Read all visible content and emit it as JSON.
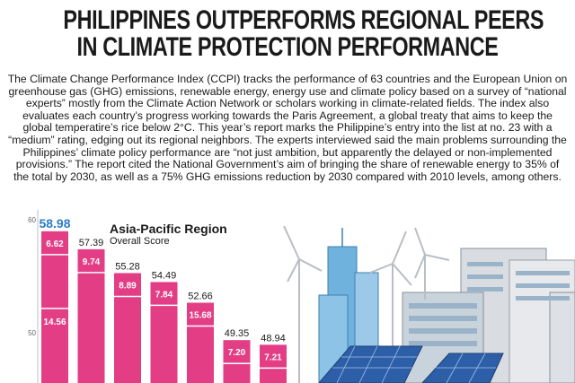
{
  "headline": {
    "line1": "PHILIPPINES OUTPERFORMS REGIONAL PEERS",
    "line2": "IN CLIMATE PROTECTION PERFORMANCE"
  },
  "body": "The Climate Change Performance Index (CCPI) tracks the performance of 63 countries and the European Union on greenhouse gas (GHG) emissions, renewable energy, energy use and climate policy based on a survey of “national experts” mostly from the Climate Action Network or scholars working in climate-related fields. The index also evaluates each country’s progress working towards the Paris Agreement, a global treaty that aims to keep the global temperatire’s rice below 2°C. This year’s report marks the Philippine’s entry into the list at no. 23 with a “medium” rating, edging out its regional neighbors. The experts interviewed said the main problems surrounding the Philippines’ climate policy performance are “not just ambition, but apparently the delayed or non-implemented provisions.” The report cited the National Government’s aim of bringing the share of renewable energy to 35% of the total by 2030, as well as a 75% GHG emissions reduction by 2030 compared with 2010 levels, among others.",
  "chart_data": {
    "type": "bar",
    "title": "Asia-Pacific Region",
    "subtitle": "Overall Score",
    "yticks": [
      "60",
      "50"
    ],
    "ylim": [
      45,
      60
    ],
    "totals": [
      "58.98",
      "57.39",
      "55.28",
      "54.49",
      "52.66",
      "49.35",
      "48.94"
    ],
    "values": [
      58.98,
      57.39,
      55.28,
      54.49,
      52.66,
      49.35,
      48.94
    ],
    "segment_labels": [
      [
        "6.62",
        "14.56"
      ],
      [
        "9.74"
      ],
      [
        "8.89"
      ],
      [
        "7.84"
      ],
      [
        "15.68"
      ],
      [
        "7.20"
      ],
      [
        "7.21"
      ]
    ],
    "colors": {
      "bar": "#e33e85",
      "bar_highlight": "#e33e85",
      "segment_line": "#ffffff",
      "first_total": "#2b7cc9",
      "total": "#1a1a1a"
    }
  }
}
